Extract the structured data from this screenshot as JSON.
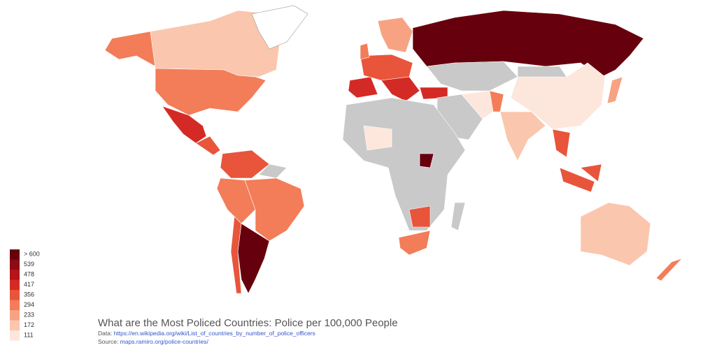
{
  "legend": {
    "items": [
      {
        "label": "> 600",
        "color": "#67000d"
      },
      {
        "label": "539",
        "color": "#8e0a14"
      },
      {
        "label": "478",
        "color": "#b3151a"
      },
      {
        "label": "417",
        "color": "#d42a25"
      },
      {
        "label": "356",
        "color": "#e8553b"
      },
      {
        "label": "294",
        "color": "#f27d58"
      },
      {
        "label": "233",
        "color": "#f7a383"
      },
      {
        "label": "172",
        "color": "#fbc6ae"
      },
      {
        "label": "111",
        "color": "#fde6db"
      }
    ]
  },
  "title": "What are the Most Policed Countries: Police per 100,000 People",
  "data_line": {
    "label": "Data:",
    "url": "https://en.wikipedia.org/wiki/List_of_countries_by_number_of_police_officers"
  },
  "source_line": {
    "label": "Source:",
    "url": "maps.ramiro.org/police-countries/"
  }
}
